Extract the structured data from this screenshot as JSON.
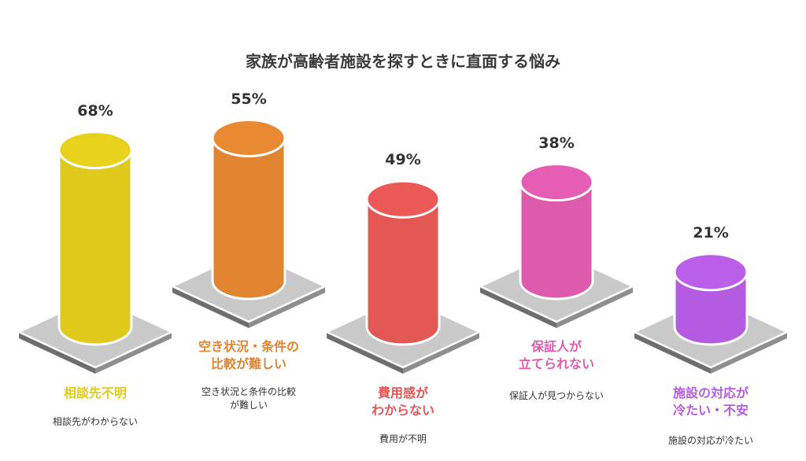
{
  "chart_data": {
    "type": "bar",
    "title": "家族が高齢者施設を探すときに直面する悩み",
    "unit": "%",
    "categories": [
      "相談先不明",
      "空き状況・条件の比較が難しい",
      "費用感がわからない",
      "保証人が立てられない",
      "施設の対応が冷たい・不安"
    ],
    "values": [
      68,
      55,
      49,
      38,
      21
    ],
    "ylim": [
      0,
      100
    ],
    "items": [
      {
        "value": 68,
        "value_label": "68%",
        "label_lines": [
          "相談先不明"
        ],
        "desc_lines": [
          "相談先がわからない"
        ],
        "color": "#dfc91a"
      },
      {
        "value": 55,
        "value_label": "55%",
        "label_lines": [
          "空き状況・条件の",
          "比較が難しい"
        ],
        "desc_lines": [
          "空き状況と条件の比較",
          "が難しい"
        ],
        "color": "#e08430"
      },
      {
        "value": 49,
        "value_label": "49%",
        "label_lines": [
          "費用感が",
          "わからない"
        ],
        "desc_lines": [
          "費用が不明"
        ],
        "color": "#e35755"
      },
      {
        "value": 38,
        "value_label": "38%",
        "label_lines": [
          "保証人が",
          "立てられない"
        ],
        "desc_lines": [
          "保証人が見つからない"
        ],
        "color": "#dd5aac"
      },
      {
        "value": 21,
        "value_label": "21%",
        "label_lines": [
          "施設の対応が",
          "冷たい・不安"
        ],
        "desc_lines": [
          "施設の対応が冷たい"
        ],
        "color": "#b45be2"
      }
    ]
  }
}
